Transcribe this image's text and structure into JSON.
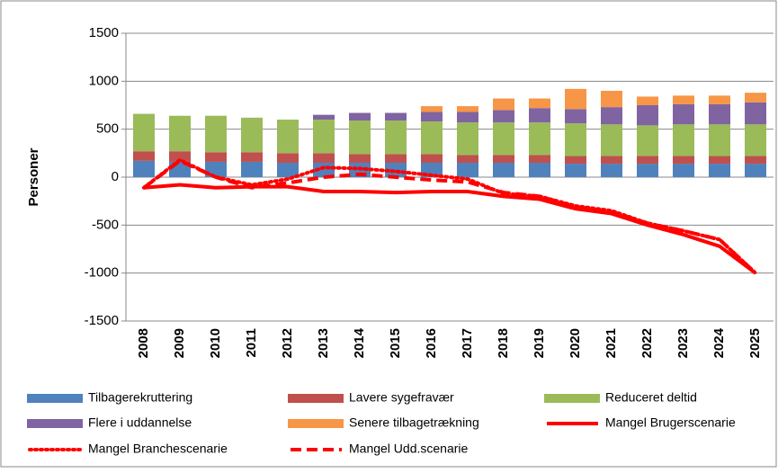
{
  "chart_data": {
    "type": "bar-line",
    "y_label": "Personer",
    "categories": [
      "2008",
      "2009",
      "2010",
      "2011",
      "2012",
      "2013",
      "2014",
      "2015",
      "2016",
      "2017",
      "2018",
      "2019",
      "2020",
      "2021",
      "2022",
      "2023",
      "2024",
      "2025"
    ],
    "ylim": [
      -1500,
      1500
    ],
    "yticks": [
      -1500,
      -1000,
      -500,
      0,
      500,
      1000,
      1500
    ],
    "grid": true,
    "series": [
      {
        "name": "Tilbagerekruttering",
        "type": "bar",
        "color": "#4f81bd",
        "values": [
          170,
          160,
          160,
          160,
          150,
          150,
          150,
          150,
          150,
          150,
          150,
          150,
          140,
          140,
          140,
          140,
          140,
          140
        ]
      },
      {
        "name": "Lavere sygefravær",
        "type": "bar",
        "color": "#c0504d",
        "values": [
          100,
          110,
          100,
          100,
          100,
          100,
          90,
          90,
          90,
          80,
          80,
          80,
          80,
          80,
          80,
          80,
          80,
          80
        ]
      },
      {
        "name": "Reduceret deltid",
        "type": "bar",
        "color": "#9bbb59",
        "values": [
          390,
          370,
          380,
          360,
          350,
          350,
          350,
          350,
          340,
          340,
          340,
          340,
          340,
          330,
          320,
          330,
          330,
          330
        ]
      },
      {
        "name": "Flere i uddannelse",
        "type": "bar",
        "color": "#8064a2",
        "values": [
          0,
          0,
          0,
          0,
          0,
          50,
          80,
          80,
          100,
          110,
          130,
          150,
          150,
          180,
          210,
          210,
          210,
          230
        ]
      },
      {
        "name": "Senere tilbagetrækning",
        "type": "bar",
        "color": "#f79646",
        "values": [
          0,
          0,
          0,
          0,
          0,
          0,
          0,
          0,
          60,
          60,
          120,
          100,
          210,
          170,
          90,
          90,
          90,
          100
        ]
      },
      {
        "name": "Mangel Brugerscenarie",
        "type": "line",
        "dash": "solid",
        "color": "#ff0000",
        "values": [
          -110,
          -80,
          -110,
          -100,
          -100,
          -150,
          -150,
          -160,
          -150,
          -150,
          -200,
          -230,
          -330,
          -380,
          -500,
          -600,
          -720,
          -1000
        ]
      },
      {
        "name": "Mangel Branchescenarie",
        "type": "line",
        "dash": "dotted",
        "color": "#ff0000",
        "values": [
          -110,
          180,
          0,
          -80,
          -20,
          100,
          90,
          60,
          20,
          -20,
          -170,
          -200,
          -300,
          -350,
          -480,
          -560,
          -650,
          -1000
        ]
      },
      {
        "name": "Mangel Udd.scenarie",
        "type": "line",
        "dash": "dashed",
        "color": "#ff0000",
        "values": [
          -110,
          170,
          0,
          -110,
          -60,
          0,
          30,
          0,
          -30,
          -50,
          -160,
          -200,
          -310,
          -360,
          -480,
          -560,
          -650,
          -1000
        ]
      }
    ]
  }
}
